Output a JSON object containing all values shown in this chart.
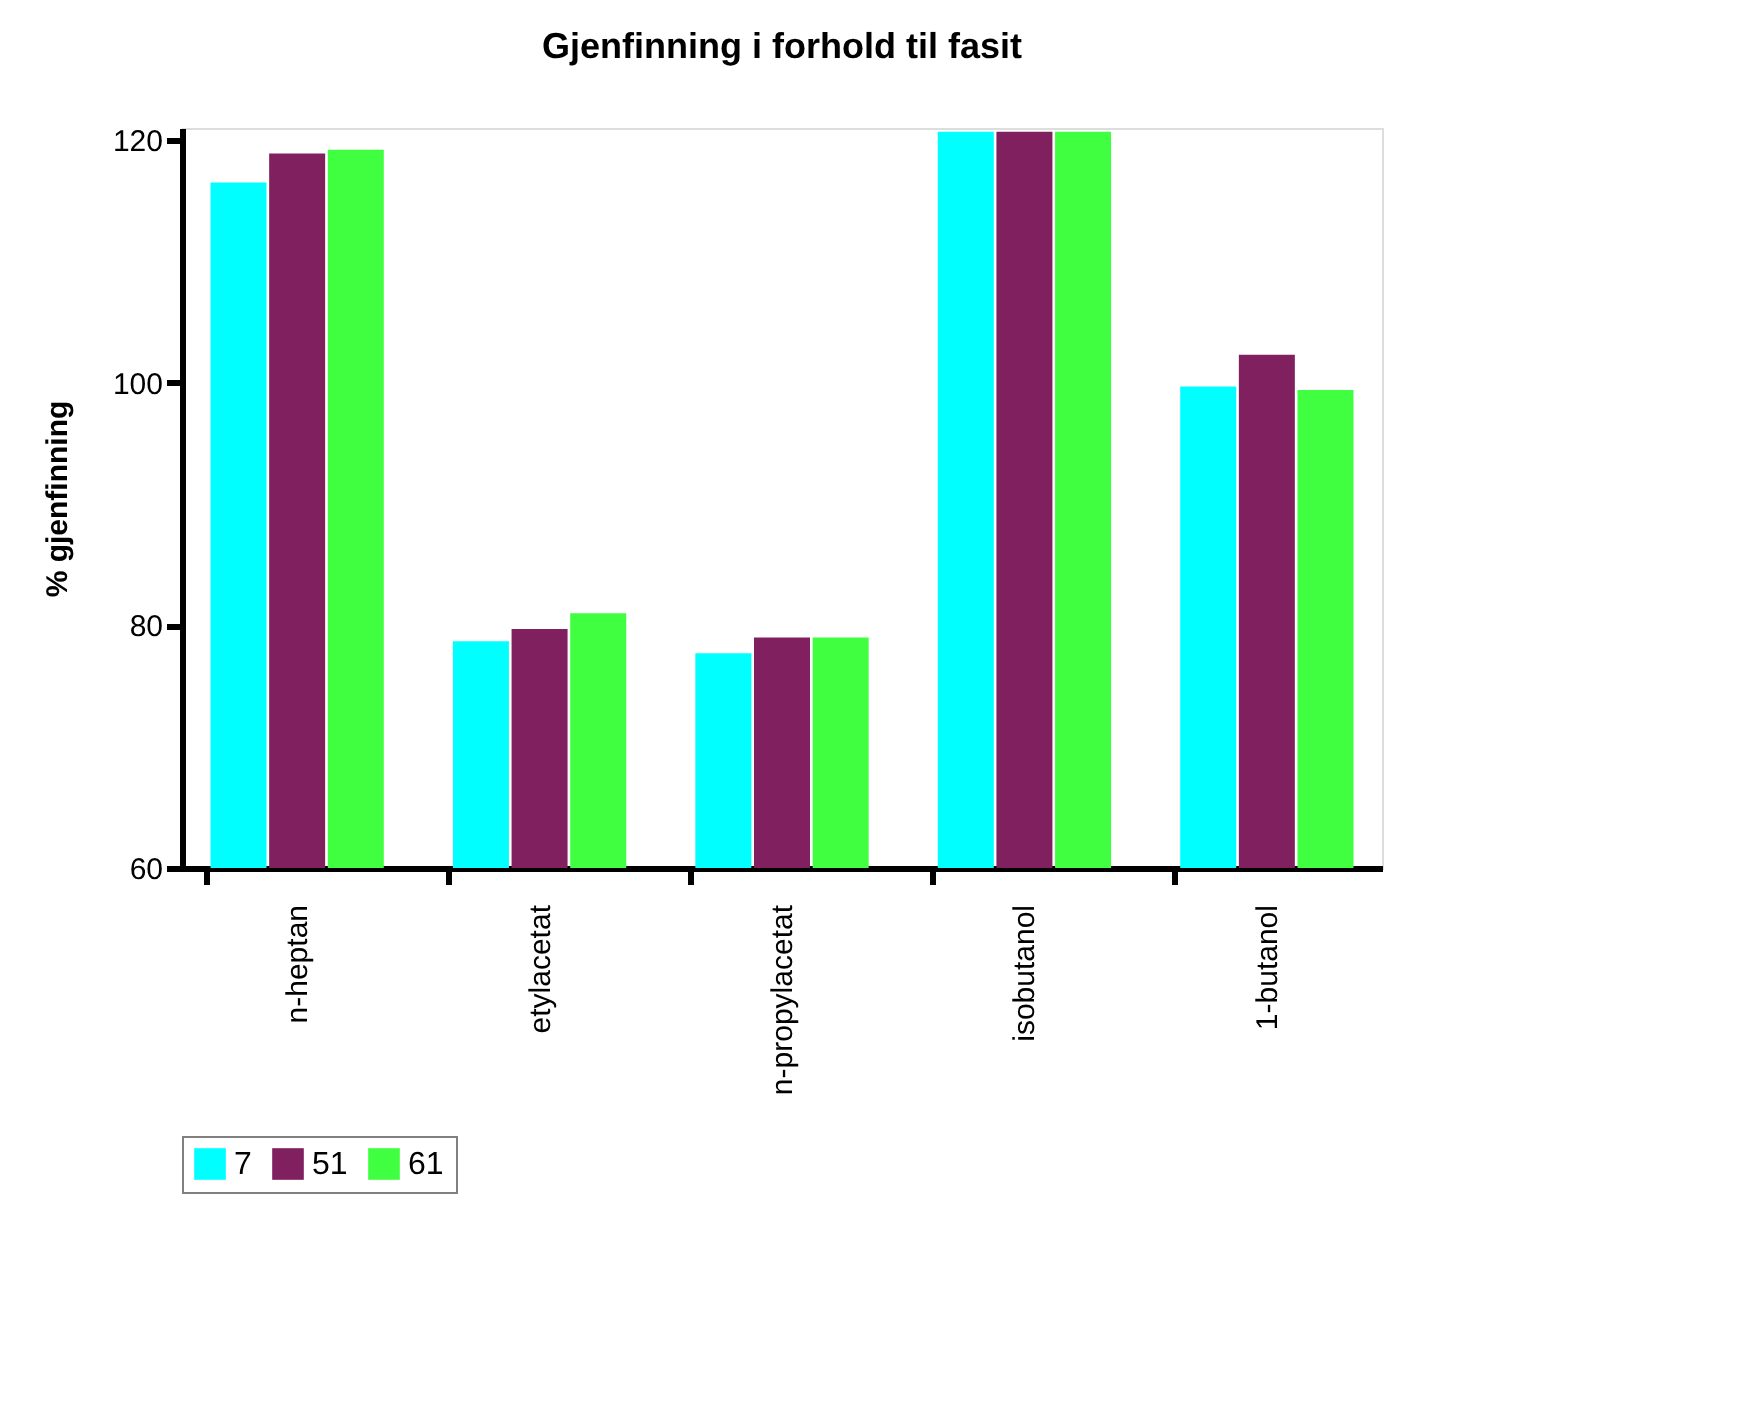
{
  "chart_data": {
    "type": "bar",
    "title": "Gjenfinning i forhold til fasit",
    "ylabel": "% gjenfinning",
    "categories": [
      "n-heptan",
      "etylacetat",
      "n-propylacetat",
      "isobutanol",
      "1-butanol"
    ],
    "series": [
      {
        "name": "7",
        "color": "#00ffff",
        "values": [
          116.5,
          78.7,
          77.7,
          120.7,
          99.7
        ]
      },
      {
        "name": "51",
        "color": "#80205f",
        "values": [
          118.9,
          79.7,
          79.0,
          120.7,
          102.3
        ]
      },
      {
        "name": "61",
        "color": "#40ff40",
        "values": [
          119.2,
          81.0,
          79.0,
          120.7,
          99.4
        ]
      }
    ],
    "ylim": [
      60,
      121
    ],
    "yticks": [
      60,
      80,
      100,
      120
    ],
    "grid": false,
    "legend": "bottom"
  }
}
